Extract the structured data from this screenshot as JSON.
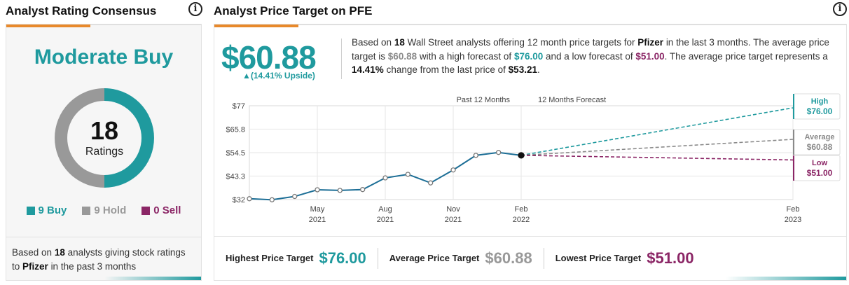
{
  "consensus": {
    "title": "Analyst Rating Consensus",
    "rating": "Moderate Buy",
    "total": "18",
    "total_label": "Ratings",
    "legend": [
      {
        "label": "9 Buy",
        "count": 9,
        "color": "#1f9a9e"
      },
      {
        "label": "9 Hold",
        "count": 9,
        "color": "#999999"
      },
      {
        "label": "0 Sell",
        "count": 0,
        "color": "#8b2666"
      }
    ],
    "footer": {
      "prefix": "Based on",
      "count": "18",
      "middle": "analysts giving stock ratings to",
      "company": "Pfizer",
      "suffix": "in the past 3 months"
    }
  },
  "target": {
    "title": "Analyst Price Target on PFE",
    "price": "$60.88",
    "upside": "▲(14.41% Upside)",
    "summary": {
      "t1": "Based on",
      "analysts": "18",
      "t2": "Wall Street analysts offering 12 month price targets for",
      "company": "Pfizer",
      "t3": "in the last 3 months. The average price target is",
      "avg": "$60.88",
      "t4": "with a high forecast of",
      "high": "$76.00",
      "t5": "and a low forecast of",
      "low": "$51.00",
      "t6": ". The average price target represents a",
      "change": "14.41%",
      "t7": "change from the last price of",
      "last": "$53.21",
      "t8": "."
    },
    "bottom": {
      "high_label": "Highest Price Target",
      "high_value": "$76.00",
      "avg_label": "Average Price Target",
      "avg_value": "$60.88",
      "low_label": "Lowest Price Target",
      "low_value": "$51.00"
    }
  },
  "chart_data": {
    "type": "line",
    "y_ticks": [
      32,
      43.3,
      54.5,
      65.8,
      77
    ],
    "y_tick_labels": [
      "$32",
      "$43.3",
      "$54.5",
      "$65.8",
      "$77"
    ],
    "ylim": [
      32,
      77
    ],
    "x_ticks": [
      {
        "label": [
          "May",
          "2021"
        ],
        "month": 3
      },
      {
        "label": [
          "Aug",
          "2021"
        ],
        "month": 6
      },
      {
        "label": [
          "Nov",
          "2021"
        ],
        "month": 9
      },
      {
        "label": [
          "Feb",
          "2022"
        ],
        "month": 12
      },
      {
        "label": [
          "Feb",
          "2023"
        ],
        "month": 24
      }
    ],
    "region_labels": {
      "past": "Past 12 Months",
      "forecast": "12 Months Forecast"
    },
    "history": {
      "month": [
        0,
        1,
        2,
        3,
        4,
        5,
        6,
        7,
        8,
        9,
        10,
        11,
        12
      ],
      "price": [
        32.4,
        31.9,
        33.5,
        36.7,
        36.4,
        36.8,
        42.4,
        44.1,
        40.0,
        46.2,
        53.2,
        54.6,
        53.21
      ]
    },
    "forecast": {
      "start_month": 12,
      "end_month": 24,
      "start_price": 53.21,
      "high": 76.0,
      "average": 60.88,
      "low": 51.0
    },
    "forecast_labels": [
      {
        "name": "High",
        "value": "$76.00",
        "color": "#1f9a9e"
      },
      {
        "name": "Average",
        "value": "$60.88",
        "color": "#8a8a8a"
      },
      {
        "name": "Low",
        "value": "$51.00",
        "color": "#8b2666"
      }
    ],
    "colors": {
      "history": "#1c6e96",
      "high": "#1f9a9e",
      "average": "#8a8a8a",
      "low": "#8b2666"
    }
  }
}
